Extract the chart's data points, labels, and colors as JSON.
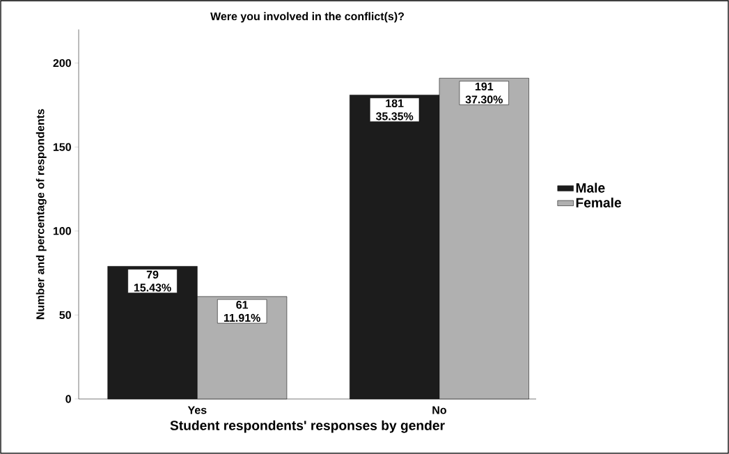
{
  "chart_data": {
    "type": "bar",
    "title": "Were you involved in the conflict(s)?",
    "xlabel": "Student respondents' responses by gender",
    "ylabel": "Number and percentage of respondents",
    "categories": [
      "Yes",
      "No"
    ],
    "series": [
      {
        "name": "Male",
        "color": "#1c1c1c",
        "values": [
          79,
          181
        ],
        "value_labels": [
          "79 15.43%",
          "181 35.35%"
        ]
      },
      {
        "name": "Female",
        "color": "#b0b0b0",
        "values": [
          61,
          191
        ],
        "value_labels": [
          "61 11.91%",
          "191 37.30%"
        ]
      }
    ],
    "ylim": [
      0,
      220
    ],
    "yticks": [
      0,
      50,
      100,
      150,
      200
    ],
    "grid": false,
    "legend": "right"
  }
}
